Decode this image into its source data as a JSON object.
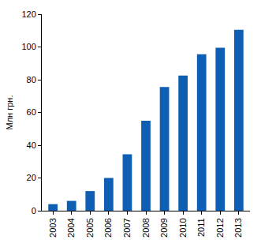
{
  "chart_data": {
    "type": "bar",
    "y_label": "Млн грн.",
    "categories": [
      "2003",
      "2004",
      "2005",
      "2006",
      "2007",
      "2008",
      "2009",
      "2010",
      "2011",
      "2012",
      "2013"
    ],
    "values": [
      4,
      6,
      12,
      20,
      34.5,
      55,
      75.5,
      82.5,
      95.5,
      99.5,
      110.5
    ],
    "color": "#0e5fb4",
    "ylim": [
      0,
      120
    ],
    "yticks": [
      0,
      20,
      40,
      60,
      80,
      100,
      120
    ],
    "grid": false
  }
}
